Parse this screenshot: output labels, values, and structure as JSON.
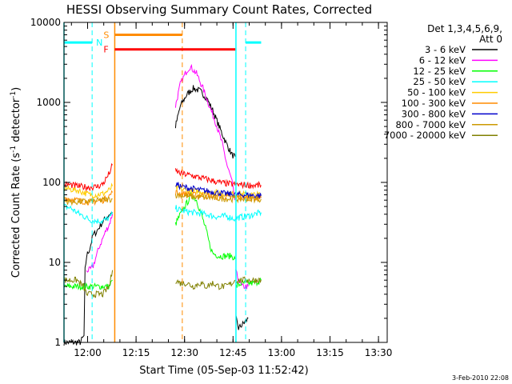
{
  "chart_data": {
    "type": "line",
    "title": "HESSI Observing Summary Count Rates, Corrected",
    "xlabel": "Start Time (05-Sep-03 11:52:42)",
    "ylabel_main": "Corrected Count Rate (s",
    "ylabel_sup1": "-1",
    "ylabel_mid": " detector",
    "ylabel_sup2": "-1",
    "ylabel_end": ")",
    "x_scale": "time (minutes after 11:52:42)",
    "xlim": [
      0,
      100
    ],
    "ylim": [
      1,
      10000
    ],
    "y_scale": "log",
    "x_ticks": [
      {
        "label": "12:00",
        "t": 7.3
      },
      {
        "label": "12:15",
        "t": 22.3
      },
      {
        "label": "12:30",
        "t": 37.3
      },
      {
        "label": "12:45",
        "t": 52.3
      },
      {
        "label": "13:00",
        "t": 67.3
      },
      {
        "label": "13:15",
        "t": 82.3
      },
      {
        "label": "13:30",
        "t": 97.3
      }
    ],
    "y_ticks": [
      {
        "label": "1",
        "v": 1
      },
      {
        "label": "10",
        "v": 10
      },
      {
        "label": "100",
        "v": 100
      },
      {
        "label": "1000",
        "v": 1000
      },
      {
        "label": "10000",
        "v": 10000
      }
    ],
    "legend": {
      "placement": "right",
      "header1": "Det 1,3,4,5,6,9,",
      "header2": "Att 0"
    },
    "series": [
      {
        "name": "3 - 6 keV",
        "color": "#000000",
        "segments": [
          [
            [
              0,
              1
            ],
            [
              5,
              1
            ],
            [
              6.2,
              1.2
            ],
            [
              6.5,
              8
            ],
            [
              7,
              12
            ],
            [
              8,
              15
            ],
            [
              9,
              22
            ],
            [
              10,
              24
            ],
            [
              11,
              28
            ],
            [
              12,
              32
            ],
            [
              13,
              36
            ],
            [
              14,
              40
            ],
            [
              15,
              42
            ]
          ],
          [
            [
              34.5,
              500
            ],
            [
              36,
              900
            ],
            [
              38,
              1250
            ],
            [
              40,
              1500
            ],
            [
              42,
              1400
            ],
            [
              44,
              1150
            ],
            [
              46,
              800
            ],
            [
              48,
              500
            ],
            [
              50,
              320
            ],
            [
              52,
              220
            ],
            [
              53,
              210
            ]
          ],
          [
            [
              53.2,
              2
            ],
            [
              54,
              1.5
            ],
            [
              56,
              1.8
            ],
            [
              57,
              2
            ]
          ]
        ]
      },
      {
        "name": "6 - 12 keV",
        "color": "#ff00ff",
        "segments": [
          [
            [
              7,
              8
            ],
            [
              8,
              8
            ],
            [
              9,
              9
            ],
            [
              10,
              12
            ],
            [
              11,
              16
            ],
            [
              12,
              20
            ],
            [
              13,
              25
            ],
            [
              14,
              30
            ],
            [
              15,
              40
            ]
          ],
          [
            [
              34.5,
              900
            ],
            [
              36,
              1700
            ],
            [
              38,
              2500
            ],
            [
              39,
              2800
            ],
            [
              41,
              2300
            ],
            [
              43,
              1500
            ],
            [
              45,
              900
            ],
            [
              47,
              550
            ],
            [
              49,
              300
            ],
            [
              50.5,
              160
            ],
            [
              51.5,
              120
            ],
            [
              52,
              100
            ],
            [
              52.8,
              60
            ]
          ],
          [
            [
              53,
              8
            ],
            [
              54,
              6
            ],
            [
              55,
              5
            ],
            [
              56,
              5
            ],
            [
              57,
              5
            ]
          ]
        ]
      },
      {
        "name": "12 - 25 keV",
        "color": "#00ff00",
        "segments": [
          [
            [
              0,
              5
            ],
            [
              2,
              5
            ],
            [
              4,
              5
            ],
            [
              6,
              5
            ],
            [
              8,
              5
            ],
            [
              10,
              5
            ],
            [
              12,
              5
            ],
            [
              14,
              5
            ],
            [
              15,
              6
            ]
          ],
          [
            [
              34.5,
              30
            ],
            [
              36,
              40
            ],
            [
              38,
              55
            ],
            [
              39.5,
              70
            ],
            [
              41,
              60
            ],
            [
              42.5,
              40
            ],
            [
              44,
              25
            ],
            [
              45,
              17
            ],
            [
              46,
              13
            ],
            [
              48,
              12
            ],
            [
              50,
              12
            ],
            [
              52,
              12
            ],
            [
              53,
              11
            ]
          ],
          [
            [
              53.3,
              5
            ],
            [
              55,
              5.5
            ],
            [
              57,
              5.5
            ],
            [
              59,
              5.5
            ],
            [
              61,
              6
            ]
          ]
        ]
      },
      {
        "name": "25 - 50 keV",
        "color": "#00ffff",
        "segments": [
          [
            [
              0,
              50
            ],
            [
              2,
              48
            ],
            [
              4,
              42
            ],
            [
              6,
              38
            ],
            [
              8,
              34
            ],
            [
              10,
              33
            ],
            [
              12,
              33
            ],
            [
              14,
              36
            ],
            [
              15,
              40
            ]
          ],
          [
            [
              34.5,
              48
            ],
            [
              36,
              45
            ],
            [
              38,
              43
            ],
            [
              40,
              42
            ],
            [
              42,
              41
            ],
            [
              44,
              40
            ],
            [
              46,
              38
            ],
            [
              48,
              37
            ],
            [
              50,
              38
            ],
            [
              52,
              36
            ],
            [
              53,
              35
            ]
          ],
          [
            [
              53.3,
              36
            ],
            [
              55,
              37
            ],
            [
              57,
              38
            ],
            [
              59,
              40
            ],
            [
              61,
              42
            ]
          ]
        ]
      },
      {
        "name": "50 - 100 keV",
        "color": "#ffcc00",
        "segments": [
          [
            [
              0,
              85
            ],
            [
              2,
              82
            ],
            [
              4,
              80
            ],
            [
              6,
              75
            ],
            [
              8,
              70
            ],
            [
              10,
              70
            ],
            [
              12,
              72
            ],
            [
              14,
              80
            ],
            [
              15,
              90
            ]
          ],
          [
            [
              34.5,
              85
            ],
            [
              36,
              82
            ],
            [
              38,
              80
            ],
            [
              40,
              78
            ],
            [
              42,
              77
            ],
            [
              44,
              76
            ],
            [
              46,
              75
            ],
            [
              48,
              74
            ],
            [
              50,
              73
            ],
            [
              52,
              72
            ],
            [
              54,
              72
            ],
            [
              56,
              71
            ],
            [
              58,
              70
            ],
            [
              61,
              70
            ]
          ]
        ]
      },
      {
        "name": "100 - 300 keV",
        "color": "#ff8c00",
        "segments": [
          [
            [
              0,
              65
            ],
            [
              2,
              62
            ],
            [
              4,
              60
            ],
            [
              6,
              58
            ],
            [
              8,
              57
            ],
            [
              10,
              58
            ],
            [
              12,
              60
            ],
            [
              14,
              68
            ],
            [
              15,
              75
            ]
          ],
          [
            [
              34.5,
              75
            ],
            [
              36,
              73
            ],
            [
              38,
              71
            ],
            [
              40,
              70
            ],
            [
              42,
              69
            ],
            [
              44,
              68
            ],
            [
              46,
              67
            ],
            [
              48,
              66
            ],
            [
              50,
              66
            ],
            [
              52,
              65
            ],
            [
              54,
              65
            ],
            [
              56,
              64
            ],
            [
              58,
              64
            ],
            [
              61,
              64
            ]
          ]
        ]
      },
      {
        "name": "300 - 800 keV",
        "color": "#0000cc",
        "segments": [
          [
            [
              34.5,
              95
            ],
            [
              36,
              90
            ],
            [
              38,
              86
            ],
            [
              40,
              83
            ],
            [
              42,
              80
            ],
            [
              44,
              78
            ],
            [
              46,
              76
            ],
            [
              48,
              74
            ],
            [
              50,
              72
            ],
            [
              52,
              71
            ],
            [
              54,
              70
            ],
            [
              56,
              70
            ],
            [
              58,
              69
            ],
            [
              61,
              68
            ]
          ]
        ]
      },
      {
        "name": "800 - 7000 keV",
        "color": "#cc9900",
        "segments": [
          [
            [
              0,
              58
            ],
            [
              4,
              57
            ],
            [
              8,
              58
            ],
            [
              12,
              60
            ],
            [
              15,
              62
            ]
          ],
          [
            [
              34.5,
              70
            ],
            [
              40,
              66
            ],
            [
              46,
              64
            ],
            [
              52,
              62
            ],
            [
              58,
              62
            ],
            [
              61,
              62
            ]
          ]
        ]
      },
      {
        "name": "7000 - 20000 keV",
        "color": "#808000",
        "segments": [
          [
            [
              0,
              6
            ],
            [
              2,
              6
            ],
            [
              4,
              6
            ],
            [
              6,
              5
            ],
            [
              7,
              4
            ],
            [
              8,
              4
            ],
            [
              10,
              4
            ],
            [
              12,
              4
            ],
            [
              13,
              4.5
            ],
            [
              14,
              5
            ],
            [
              15,
              8
            ]
          ],
          [
            [
              34.5,
              6
            ],
            [
              36,
              5.5
            ],
            [
              38,
              5.5
            ],
            [
              40,
              5
            ],
            [
              42,
              5.5
            ],
            [
              44,
              5
            ],
            [
              46,
              5.5
            ],
            [
              48,
              5
            ],
            [
              50,
              5
            ],
            [
              52,
              5.5
            ],
            [
              53,
              6
            ]
          ],
          [
            [
              53.3,
              6
            ],
            [
              55,
              6
            ],
            [
              57,
              6
            ],
            [
              59,
              6
            ],
            [
              61,
              6
            ]
          ]
        ]
      },
      {
        "name": "",
        "color": "#ff0000",
        "segments": [
          [
            [
              0,
              95
            ],
            [
              2,
              93
            ],
            [
              4,
              90
            ],
            [
              6,
              88
            ],
            [
              8,
              87
            ],
            [
              10,
              88
            ],
            [
              12,
              95
            ],
            [
              14,
              130
            ],
            [
              15,
              165
            ]
          ],
          [
            [
              34.5,
              140
            ],
            [
              36,
              130
            ],
            [
              38,
              125
            ],
            [
              40,
              120
            ],
            [
              42,
              115
            ],
            [
              44,
              110
            ],
            [
              46,
              105
            ],
            [
              48,
              100
            ],
            [
              50,
              97
            ],
            [
              52,
              95
            ],
            [
              54,
              94
            ],
            [
              56,
              93
            ],
            [
              58,
              92
            ],
            [
              61,
              92
            ]
          ]
        ]
      }
    ],
    "annotations": {
      "N_label": "N",
      "S_label": "S",
      "F_label": "F",
      "night_color": "#00ffff",
      "saa_color": "#ff8c00",
      "flare_color": "#ff0000",
      "night_bars": [
        {
          "t_start": 0,
          "t_end": 8.7,
          "v": 5600
        },
        {
          "t_start": 56.2,
          "t_end": 61,
          "v": 5600
        }
      ],
      "night_dashed": [
        8.7,
        56.2
      ],
      "night_solid": [
        0,
        53.2
      ],
      "saa_bar": {
        "t_start": 15.7,
        "t_end": 36.6,
        "v": 7000
      },
      "saa_solid": [
        15.7
      ],
      "saa_dashed": [
        36.6
      ],
      "flare_bar": {
        "t_start": 15.7,
        "t_end": 53.0,
        "v": 4600
      }
    },
    "footer_date": "3-Feb-2010 22:08"
  }
}
